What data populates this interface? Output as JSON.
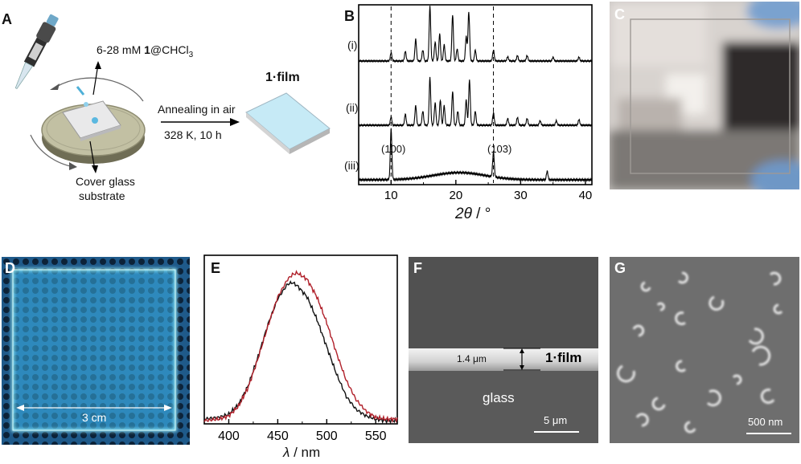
{
  "panel_a": {
    "label": "A",
    "concentration": "6-28 mM ",
    "compound": "1",
    "solvent": "@CHCl",
    "solvent_sub": "3",
    "annealing": "Annealing in air",
    "conditions": "328 K, 10 h",
    "film_num": "1",
    "film_word": "·film",
    "substrate_line1": "Cover glass",
    "substrate_line2": "substrate"
  },
  "panel_b": {
    "label": "B",
    "trace_labels": [
      "(i)",
      "(ii)",
      "(iii)"
    ],
    "peak_labels": [
      "(100)",
      "(103)"
    ],
    "xlabel_sym": "2θ",
    "xlabel_unit": " / °"
  },
  "panel_c": {
    "label": "C"
  },
  "panel_d": {
    "label": "D",
    "scale_text": "3 cm"
  },
  "panel_e": {
    "label": "E",
    "xlabel_sym": "λ",
    "xlabel_unit": " / nm"
  },
  "panel_f": {
    "label": "F",
    "thickness": "1.4 μm",
    "film_num": "1",
    "film_word": "·film",
    "glass": "glass",
    "scale": "5 μm"
  },
  "panel_g": {
    "label": "G",
    "scale": "500 nm"
  },
  "chart_data": [
    {
      "type": "line",
      "panel": "B",
      "title": "",
      "xlabel": "2θ / °",
      "ylabel": "",
      "xlim": [
        5,
        41
      ],
      "x_ticks": [
        10,
        20,
        30,
        40
      ],
      "reference_lines_x": [
        10.0,
        25.8
      ],
      "series": [
        {
          "name": "(i)",
          "baseline": 0,
          "peaks": [
            [
              10.0,
              0.15
            ],
            [
              12.2,
              0.18
            ],
            [
              13.8,
              0.4
            ],
            [
              14.9,
              0.2
            ],
            [
              16.0,
              1.0
            ],
            [
              16.8,
              0.35
            ],
            [
              17.5,
              0.5
            ],
            [
              18.2,
              0.3
            ],
            [
              19.5,
              0.85
            ],
            [
              20.2,
              0.22
            ],
            [
              21.6,
              0.45
            ],
            [
              22.0,
              0.9
            ],
            [
              23.0,
              0.2
            ],
            [
              25.8,
              0.2
            ],
            [
              28.0,
              0.08
            ],
            [
              29.5,
              0.1
            ],
            [
              31.0,
              0.1
            ],
            [
              35.0,
              0.07
            ],
            [
              39.0,
              0.07
            ]
          ]
        },
        {
          "name": "(ii)",
          "baseline": 0,
          "peaks": [
            [
              10.0,
              0.15
            ],
            [
              12.2,
              0.2
            ],
            [
              13.8,
              0.35
            ],
            [
              14.9,
              0.25
            ],
            [
              16.0,
              0.85
            ],
            [
              16.8,
              0.4
            ],
            [
              17.6,
              0.45
            ],
            [
              18.2,
              0.35
            ],
            [
              19.5,
              0.6
            ],
            [
              20.3,
              0.25
            ],
            [
              21.6,
              0.45
            ],
            [
              22.1,
              0.8
            ],
            [
              23.0,
              0.25
            ],
            [
              25.8,
              0.22
            ],
            [
              28.0,
              0.12
            ],
            [
              29.5,
              0.14
            ],
            [
              31.0,
              0.12
            ],
            [
              33.0,
              0.08
            ],
            [
              35.5,
              0.08
            ],
            [
              39.0,
              0.1
            ]
          ]
        },
        {
          "name": "(iii)",
          "baseline": 0,
          "peaks": [
            [
              10.0,
              0.7
            ],
            [
              25.8,
              0.35
            ],
            [
              34.1,
              0.12
            ]
          ],
          "hump": {
            "center": 20.5,
            "height": 0.1,
            "width": 4
          }
        }
      ]
    },
    {
      "type": "line",
      "panel": "E",
      "title": "",
      "xlabel": "λ / nm",
      "ylabel": "",
      "xlim": [
        375,
        572
      ],
      "ylim": [
        0,
        1.0
      ],
      "x_ticks": [
        400,
        450,
        500,
        550
      ],
      "series": [
        {
          "name": "black",
          "color": "#111111",
          "x": [
            375,
            390,
            400,
            410,
            420,
            430,
            440,
            450,
            460,
            465,
            470,
            480,
            490,
            500,
            510,
            520,
            530,
            540,
            550,
            560,
            572
          ],
          "y": [
            0.03,
            0.04,
            0.06,
            0.12,
            0.24,
            0.42,
            0.62,
            0.78,
            0.87,
            0.88,
            0.86,
            0.79,
            0.65,
            0.48,
            0.31,
            0.17,
            0.09,
            0.05,
            0.03,
            0.02,
            0.02
          ]
        },
        {
          "name": "red",
          "color": "#b0202a",
          "x": [
            375,
            390,
            400,
            410,
            420,
            430,
            440,
            450,
            460,
            465,
            470,
            480,
            490,
            500,
            510,
            520,
            530,
            540,
            550,
            560,
            572
          ],
          "y": [
            0.02,
            0.03,
            0.05,
            0.11,
            0.23,
            0.41,
            0.61,
            0.79,
            0.9,
            0.93,
            0.94,
            0.9,
            0.79,
            0.63,
            0.44,
            0.27,
            0.15,
            0.08,
            0.04,
            0.03,
            0.03
          ]
        }
      ]
    }
  ]
}
